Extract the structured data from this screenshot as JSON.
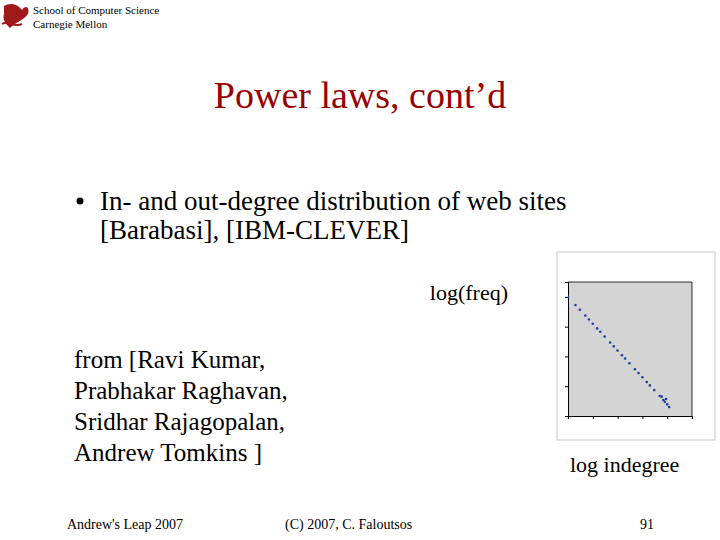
{
  "slide": {
    "header": [
      "School of Computer Science",
      "Carnegie Mellon"
    ],
    "title": "Power laws, cont’d",
    "bullet": [
      "In- and out-degree distribution of web sites",
      "[Barabasi], [IBM-CLEVER]"
    ],
    "y_caption": "log(freq)",
    "credit": [
      "from [Ravi Kumar,",
      "Prabhakar Raghavan,",
      "Sridhar Rajagopalan,",
      "Andrew Tomkins ]"
    ],
    "x_caption": "log indegree",
    "footer": {
      "left": "Andrew's Leap 2007",
      "center": "(C) 2007, C. Faloutsos",
      "page": "91"
    }
  },
  "chart_data": {
    "type": "scatter",
    "x": [
      1,
      2,
      3,
      5,
      7,
      10,
      15,
      20,
      30,
      50,
      70,
      100,
      150,
      200,
      300,
      500,
      700,
      1000,
      1500,
      2000,
      3000,
      5000,
      6000,
      7000,
      8000,
      9000,
      10000,
      12000
    ],
    "values": [
      100000000,
      28700000,
      13800000,
      5520000,
      3010000,
      1580000,
      763000,
      455000,
      218000,
      87400,
      47700,
      25100,
      12100,
      7200,
      3460,
      1380,
      760,
      398,
      190,
      114,
      55,
      22,
      20,
      12,
      9,
      14,
      6,
      4
    ],
    "xlim": [
      1,
      100000
    ],
    "ylim": [
      1,
      1000000000
    ],
    "xticks": [
      1,
      10,
      100,
      1000,
      10000,
      100000
    ],
    "yticks": [
      1,
      100,
      10000,
      1000000,
      100000000
    ],
    "log": true,
    "tick_labels": false,
    "color": "#1f3f9f",
    "marker": "circle"
  }
}
